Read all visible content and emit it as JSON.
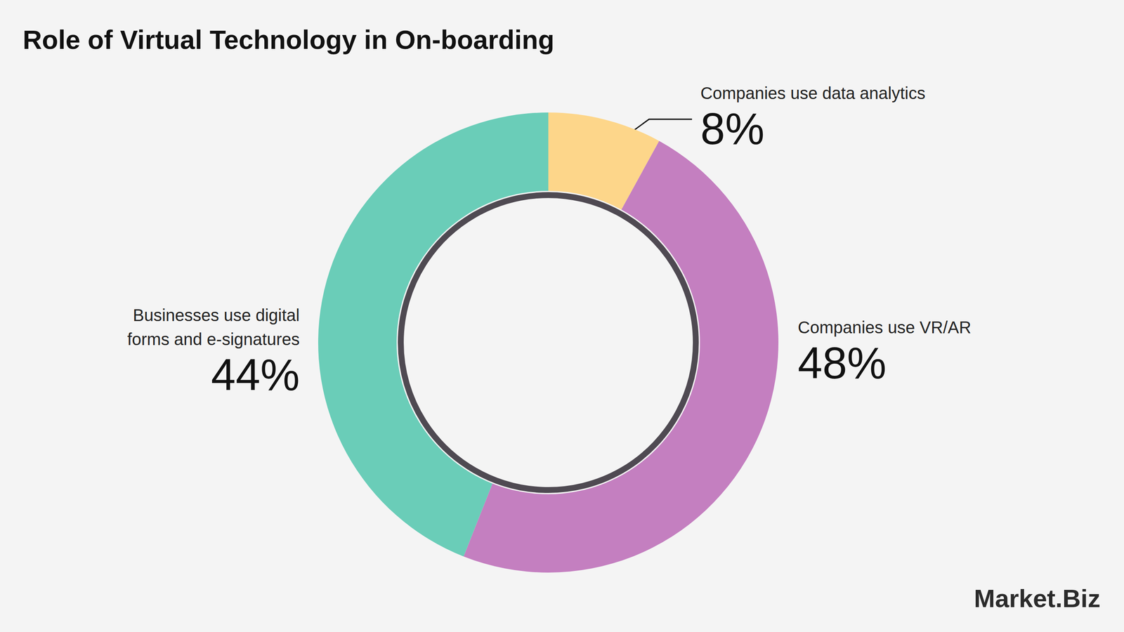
{
  "chart_data": {
    "type": "pie",
    "title": "Role of Virtual Technology in On-boarding",
    "categories": [
      "Companies use data analytics",
      "Companies use VR/AR",
      "Businesses use digital forms and e-signatures"
    ],
    "values": [
      8,
      48,
      44
    ],
    "value_labels": [
      "8%",
      "48%",
      "44%"
    ],
    "colors": [
      "#fdd68a",
      "#c47fc0",
      "#6acdb8"
    ],
    "data_labels": true,
    "annotations": [
      "Market.Biz"
    ]
  }
}
